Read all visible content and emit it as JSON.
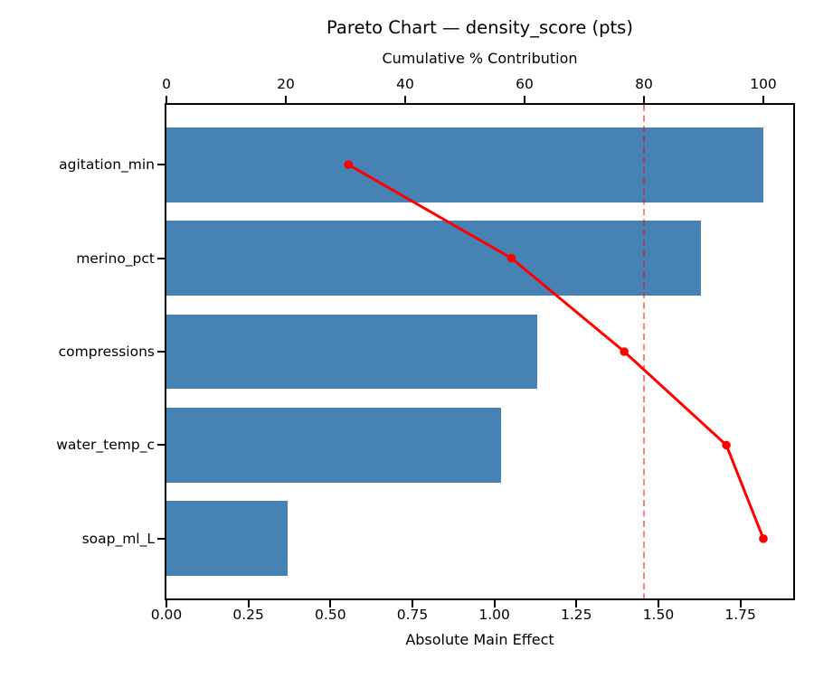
{
  "figure": {
    "background": "#ffffff",
    "text_color": "#000000"
  },
  "chart_data": {
    "type": "bar",
    "subtype": "pareto",
    "orientation": "horizontal",
    "title": "Pareto Chart — density_score (pts)",
    "categories": [
      "agitation_min",
      "merino_pct",
      "compressions",
      "water_temp_c",
      "soap_ml_L"
    ],
    "series": [
      {
        "name": "Absolute Main Effect",
        "type": "bar",
        "axis": "bottom",
        "values": [
          1.82,
          1.63,
          1.13,
          1.02,
          0.37
        ],
        "color": "#4682b4"
      },
      {
        "name": "Cumulative % Contribution",
        "type": "line",
        "axis": "top",
        "values": [
          30.5,
          57.8,
          76.7,
          93.8,
          100.0
        ],
        "color": "#ff0000",
        "marker": "circle"
      }
    ],
    "threshold_line": {
      "axis": "top",
      "value": 80,
      "style": "dashed",
      "color": "#ff0000",
      "opacity": 0.5
    },
    "top_axis": {
      "label": "Cumulative % Contribution",
      "tick_labels": [
        "0",
        "20",
        "40",
        "60",
        "80",
        "100"
      ],
      "tick_values": [
        0,
        20,
        40,
        60,
        80,
        100
      ],
      "xlim": [
        0,
        105
      ]
    },
    "bottom_axis": {
      "label": "Absolute Main Effect",
      "tick_labels": [
        "0.00",
        "0.25",
        "0.50",
        "0.75",
        "1.00",
        "1.25",
        "1.50",
        "1.75"
      ],
      "tick_values": [
        0,
        0.25,
        0.5,
        0.75,
        1.0,
        1.25,
        1.5,
        1.75
      ],
      "xlim": [
        0,
        1.911
      ]
    },
    "ylim": [
      -0.64,
      4.64
    ],
    "bar_height_frac": 0.8,
    "grid": false,
    "legend": false
  }
}
